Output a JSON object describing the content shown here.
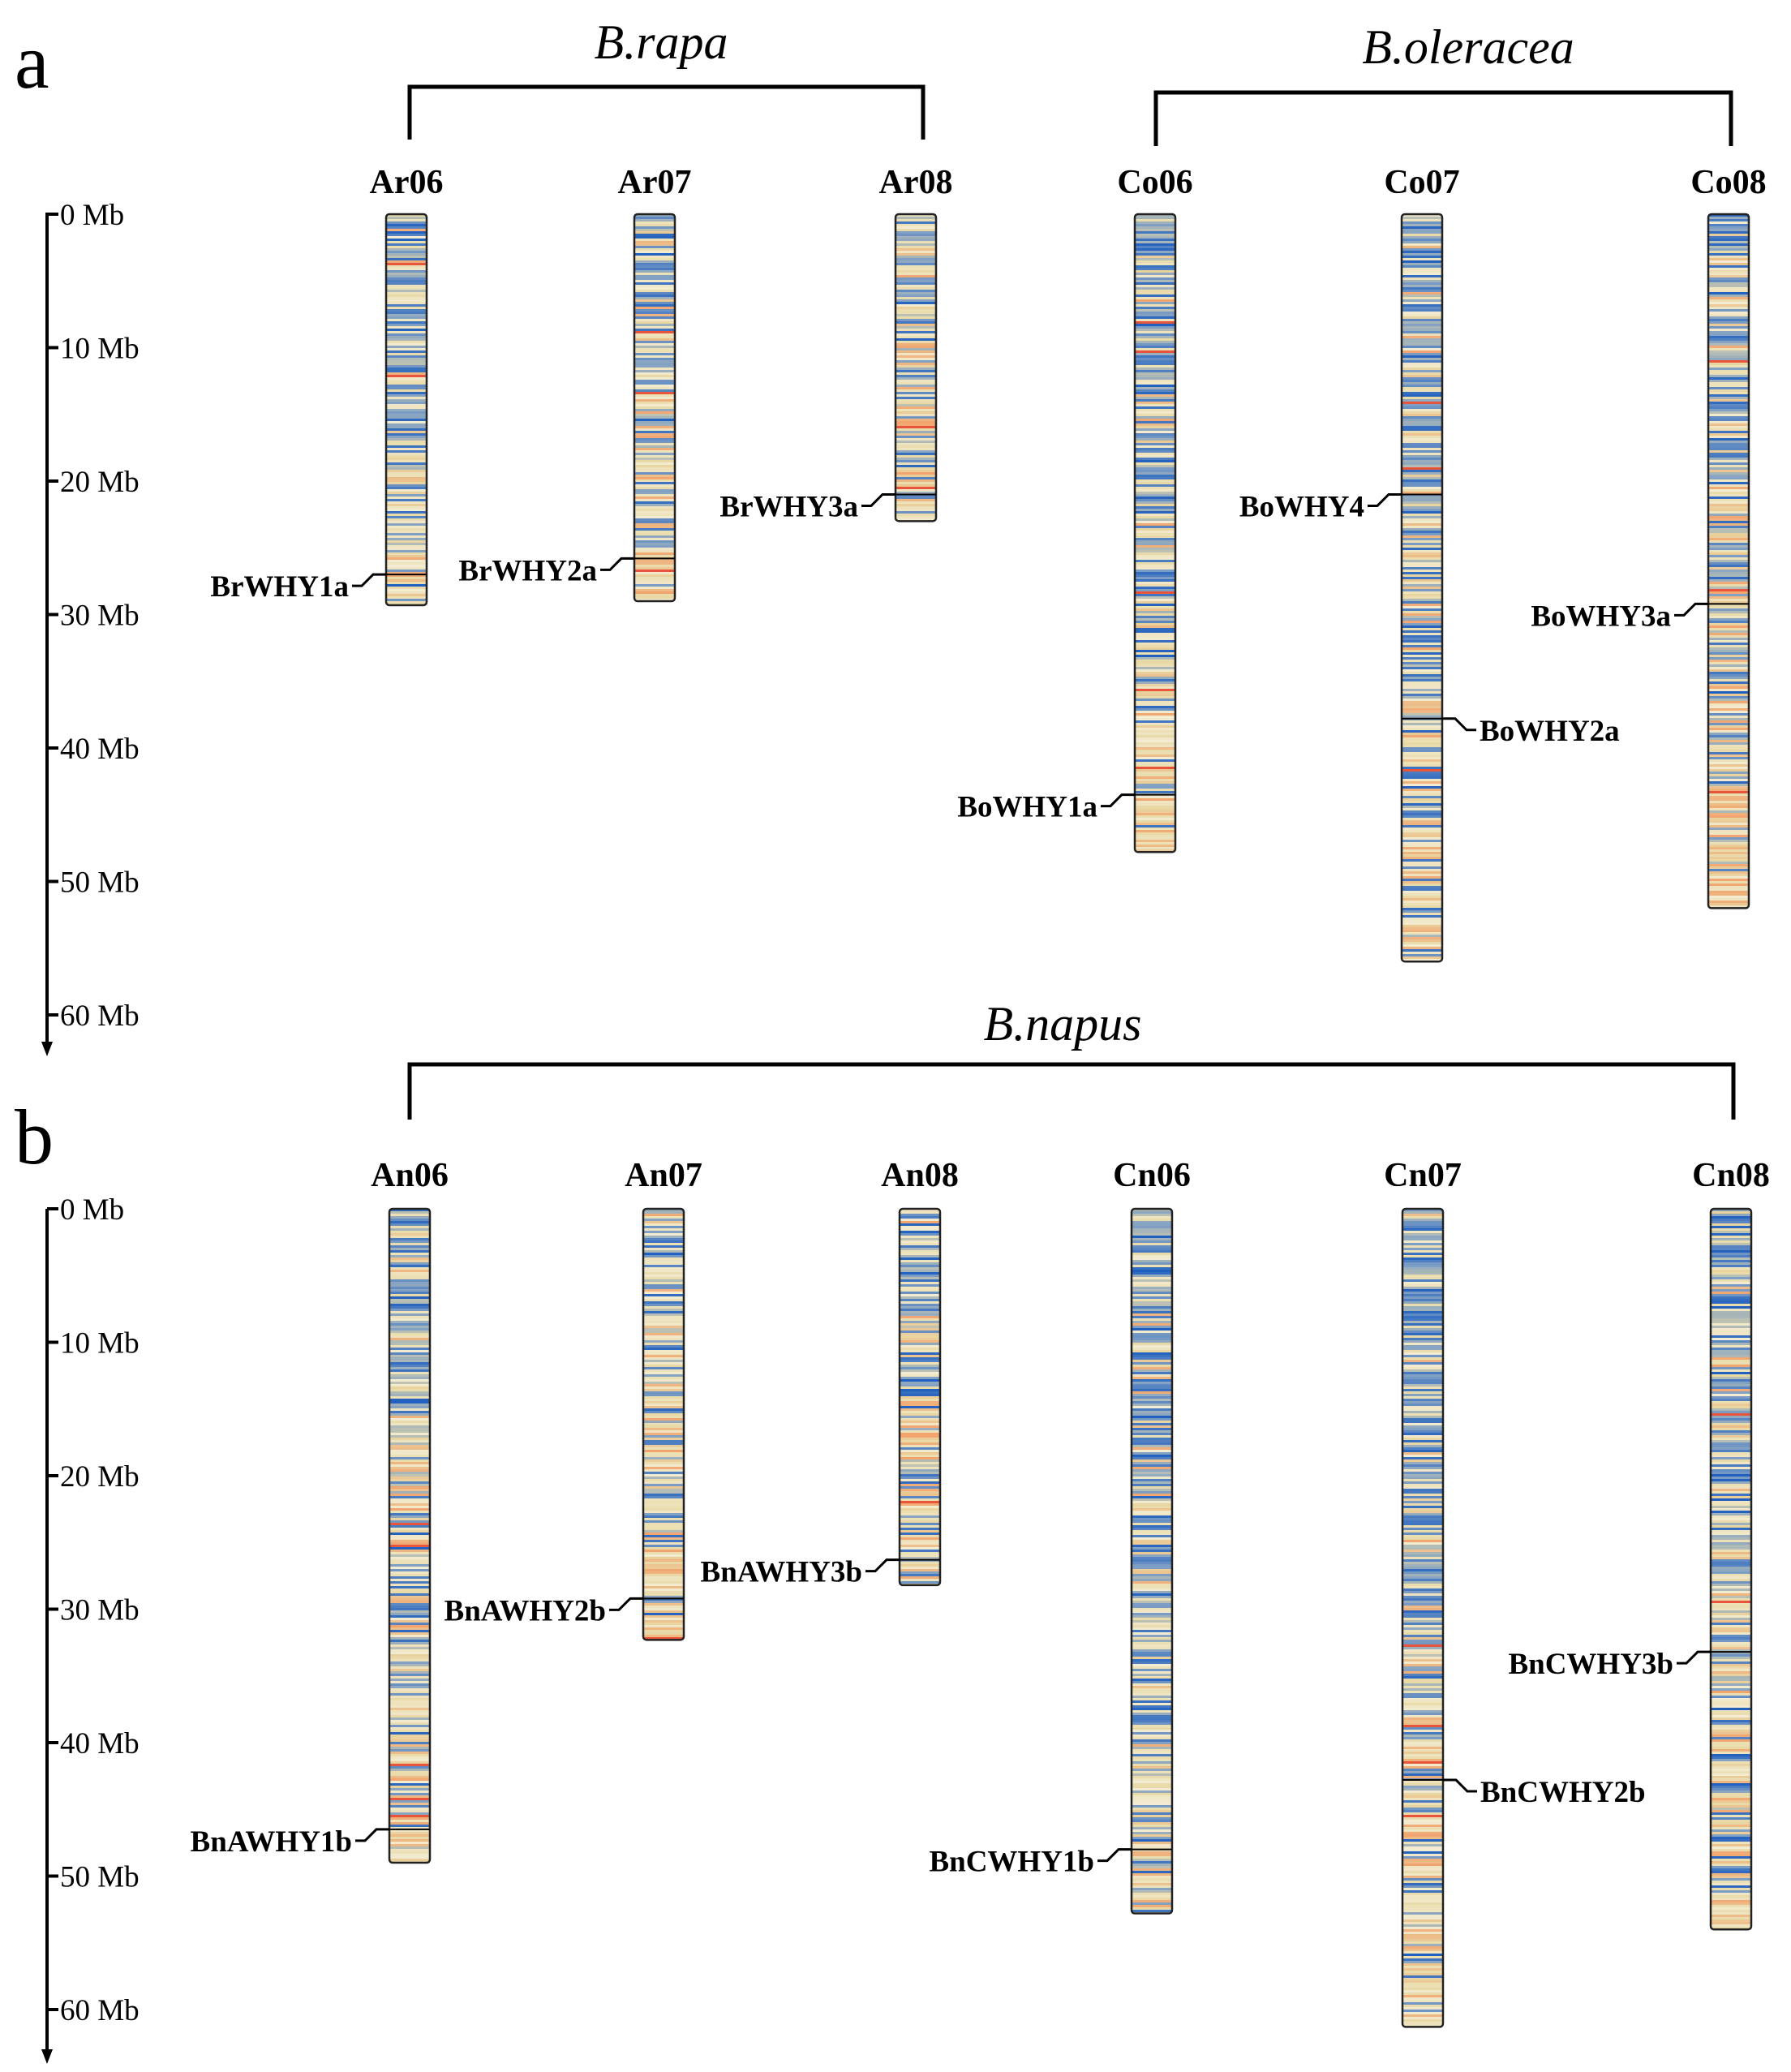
{
  "figure": {
    "axis": {
      "tick_labels": [
        "0 Mb",
        "10 Mb",
        "20 Mb",
        "30 Mb",
        "40 Mb",
        "50 Mb",
        "60 Mb"
      ],
      "tick_values_mb": [
        0,
        10,
        20,
        30,
        40,
        50,
        60
      ]
    },
    "panels": [
      {
        "label": "a",
        "groups": [
          {
            "species": "B.rapa",
            "chromosomes": [
              "Ar06",
              "Ar07",
              "Ar08"
            ]
          },
          {
            "species": "B.oleracea",
            "chromosomes": [
              "Co06",
              "Co07",
              "Co08"
            ]
          }
        ],
        "chromosomes": [
          {
            "name": "Ar06",
            "length_mb": 29.3,
            "density_seed": 11,
            "blue_bias": 0.55,
            "orange_bias": 0.35,
            "genes": [
              {
                "name": "BrWHY1a",
                "pos_mb": 27.0,
                "side": "left"
              }
            ]
          },
          {
            "name": "Ar07",
            "length_mb": 29.0,
            "density_seed": 23,
            "blue_bias": 0.55,
            "orange_bias": 0.35,
            "genes": [
              {
                "name": "BrWHY2a",
                "pos_mb": 25.8,
                "side": "left"
              }
            ]
          },
          {
            "name": "Ar08",
            "length_mb": 23.0,
            "density_seed": 37,
            "blue_bias": 0.5,
            "orange_bias": 0.45,
            "genes": [
              {
                "name": "BrWHY3a",
                "pos_mb": 21.0,
                "side": "left"
              }
            ]
          },
          {
            "name": "Co06",
            "length_mb": 47.8,
            "density_seed": 41,
            "blue_bias": 0.7,
            "orange_bias": 0.3,
            "genes": [
              {
                "name": "BoWHY1a",
                "pos_mb": 43.5,
                "side": "left"
              }
            ]
          },
          {
            "name": "Co07",
            "length_mb": 56.0,
            "density_seed": 53,
            "blue_bias": 0.62,
            "orange_bias": 0.4,
            "genes": [
              {
                "name": "BoWHY4",
                "pos_mb": 21.0,
                "side": "left"
              },
              {
                "name": "BoWHY2a",
                "pos_mb": 37.8,
                "side": "right"
              }
            ]
          },
          {
            "name": "Co08",
            "length_mb": 52.0,
            "density_seed": 67,
            "blue_bias": 0.62,
            "orange_bias": 0.45,
            "genes": [
              {
                "name": "BoWHY3a",
                "pos_mb": 29.2,
                "side": "left"
              }
            ]
          }
        ]
      },
      {
        "label": "b",
        "groups": [
          {
            "species": "B.napus",
            "chromosomes": [
              "An06",
              "An07",
              "An08",
              "Cn06",
              "Cn07",
              "Cn08"
            ]
          }
        ],
        "chromosomes": [
          {
            "name": "An06",
            "length_mb": 49.0,
            "density_seed": 71,
            "blue_bias": 0.62,
            "orange_bias": 0.4,
            "genes": [
              {
                "name": "BnAWHY1b",
                "pos_mb": 46.5,
                "side": "left"
              }
            ]
          },
          {
            "name": "An07",
            "length_mb": 32.3,
            "density_seed": 83,
            "blue_bias": 0.55,
            "orange_bias": 0.4,
            "genes": [
              {
                "name": "BnAWHY2b",
                "pos_mb": 29.2,
                "side": "left"
              }
            ]
          },
          {
            "name": "An08",
            "length_mb": 28.2,
            "density_seed": 97,
            "blue_bias": 0.6,
            "orange_bias": 0.45,
            "genes": [
              {
                "name": "BnAWHY3b",
                "pos_mb": 26.3,
                "side": "left"
              }
            ]
          },
          {
            "name": "Cn06",
            "length_mb": 52.8,
            "density_seed": 101,
            "blue_bias": 0.75,
            "orange_bias": 0.25,
            "genes": [
              {
                "name": "BnCWHY1b",
                "pos_mb": 48.0,
                "side": "left"
              }
            ]
          },
          {
            "name": "Cn07",
            "length_mb": 61.3,
            "density_seed": 113,
            "blue_bias": 0.68,
            "orange_bias": 0.35,
            "genes": [
              {
                "name": "BnCWHY2b",
                "pos_mb": 42.8,
                "side": "right"
              }
            ]
          },
          {
            "name": "Cn08",
            "length_mb": 54.0,
            "density_seed": 127,
            "blue_bias": 0.66,
            "orange_bias": 0.4,
            "genes": [
              {
                "name": "BnCWHY3b",
                "pos_mb": 33.2,
                "side": "left"
              }
            ]
          }
        ]
      }
    ],
    "colors": {
      "high_density": "#1f5fbf",
      "mid_density": "#7f9fc4",
      "low_density": "#e8d9a6",
      "lowest_density": "#f2a36e",
      "peak": "#e8553a",
      "line": "#000000"
    }
  }
}
